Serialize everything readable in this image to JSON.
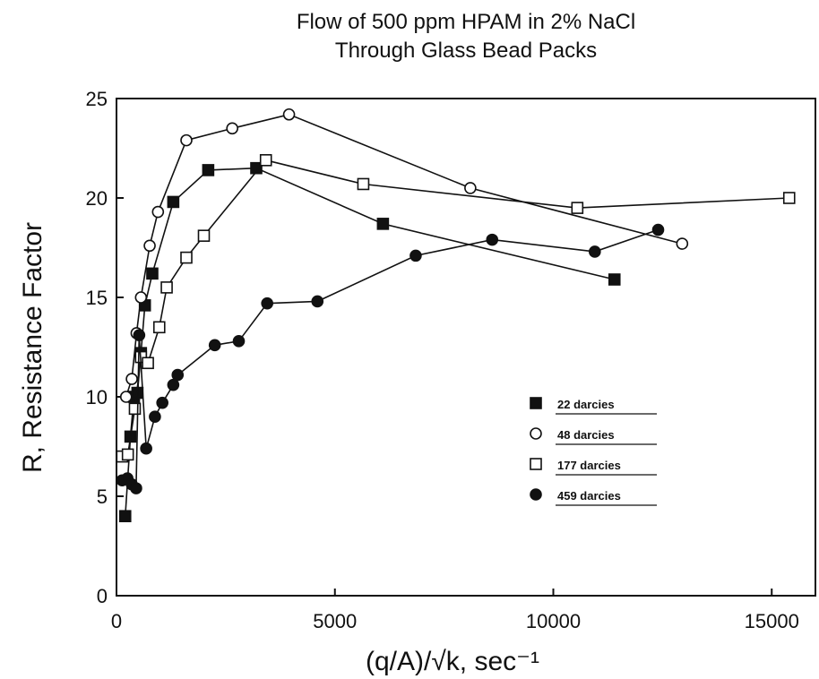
{
  "chart_data": {
    "type": "scatter",
    "title": [
      "Flow of 500 ppm HPAM in 2% NaCl",
      "Through Glass Bead Packs"
    ],
    "xlabel": "(q/A)/√k, sec⁻¹",
    "ylabel": "R, Resistance Factor",
    "xlim": [
      0,
      16000
    ],
    "ylim": [
      0,
      25
    ],
    "x_ticks": [
      0,
      5000,
      10000,
      15000
    ],
    "y_ticks": [
      0,
      5,
      10,
      15,
      20,
      25
    ],
    "grid": false,
    "legend_position": "right-middle",
    "series": [
      {
        "name": "22 darcies",
        "marker": "filled-square",
        "x": [
          200,
          320,
          400,
          480,
          560,
          650,
          820,
          1300,
          2100,
          3200,
          6100,
          11400
        ],
        "y": [
          4.0,
          8.0,
          10.0,
          10.2,
          12.2,
          14.6,
          16.2,
          19.8,
          21.4,
          21.5,
          18.7,
          15.9
        ]
      },
      {
        "name": "48 darcies",
        "marker": "open-circle",
        "x": [
          220,
          350,
          460,
          560,
          760,
          950,
          1600,
          2650,
          3950,
          8100,
          12950
        ],
        "y": [
          10.0,
          10.9,
          13.2,
          15.0,
          17.6,
          19.3,
          22.9,
          23.5,
          24.2,
          20.5,
          17.7
        ]
      },
      {
        "name": "177 darcies",
        "marker": "open-square",
        "x": [
          130,
          260,
          420,
          560,
          720,
          980,
          1150,
          1600,
          2000,
          3420,
          5650,
          10550,
          15400
        ],
        "y": [
          7.0,
          7.1,
          9.4,
          12.0,
          11.7,
          13.5,
          15.5,
          17.0,
          18.1,
          21.9,
          20.7,
          19.5,
          20.0
        ]
      },
      {
        "name": "459 darcies",
        "marker": "filled-circle",
        "x": [
          130,
          250,
          350,
          450,
          520,
          680,
          880,
          1050,
          1300,
          1400,
          2250,
          2800,
          3450,
          4600,
          6850,
          8600,
          10950,
          12400
        ],
        "y": [
          5.8,
          5.9,
          5.6,
          5.4,
          13.1,
          7.4,
          9.0,
          9.7,
          10.6,
          11.1,
          12.6,
          12.8,
          14.7,
          14.8,
          17.1,
          17.9,
          17.3,
          18.4
        ]
      }
    ]
  }
}
